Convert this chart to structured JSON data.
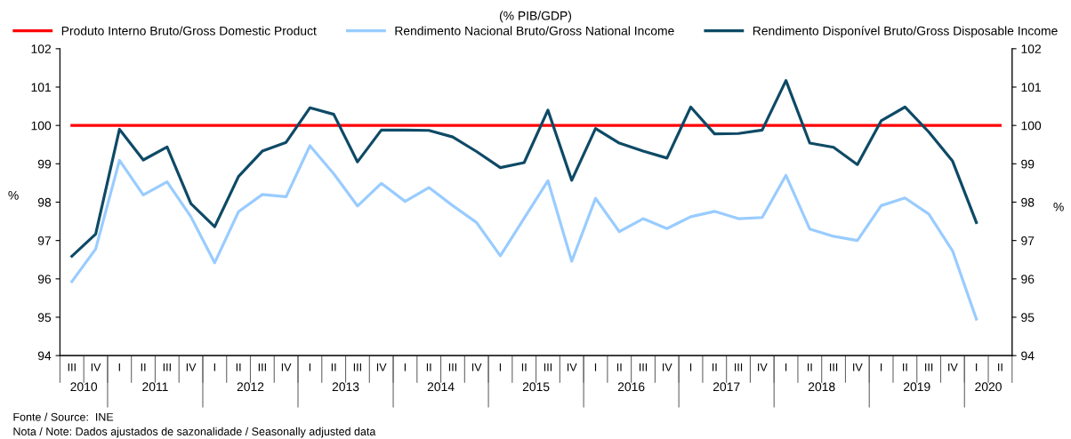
{
  "chart_data": {
    "type": "line",
    "title": "(% PIB/GDP)",
    "categories": [
      "III",
      "IV",
      "I",
      "II",
      "III",
      "IV",
      "I",
      "II",
      "III",
      "IV",
      "I",
      "II",
      "III",
      "IV",
      "I",
      "II",
      "III",
      "IV",
      "I",
      "II",
      "III",
      "IV",
      "I",
      "II",
      "III",
      "IV",
      "I",
      "II",
      "III",
      "IV",
      "I",
      "II",
      "III",
      "IV",
      "I",
      "II",
      "III",
      "IV",
      "I",
      "II"
    ],
    "series": [
      {
        "name": "Produto Interno Bruto/Gross Domestic Product",
        "color": "#ff0000",
        "values": [
          100,
          100,
          100,
          100,
          100,
          100,
          100,
          100,
          100,
          100,
          100,
          100,
          100,
          100,
          100,
          100,
          100,
          100,
          100,
          100,
          100,
          100,
          100,
          100,
          100,
          100,
          100,
          100,
          100,
          100,
          100,
          100,
          100,
          100,
          100,
          100,
          100,
          100,
          100,
          100
        ]
      },
      {
        "name": "Rendimento Nacional Bruto/Gross National Income",
        "color": "#99ccff",
        "values": [
          95.93,
          96.78,
          99.09,
          98.19,
          98.53,
          97.62,
          96.42,
          97.75,
          98.2,
          98.14,
          99.47,
          98.74,
          97.9,
          98.49,
          98.02,
          98.38,
          97.91,
          97.47,
          96.6,
          97.58,
          98.56,
          96.46,
          98.1,
          97.23,
          97.57,
          97.31,
          97.62,
          97.76,
          97.57,
          97.6,
          98.7,
          97.3,
          97.11,
          97.0,
          97.91,
          98.11,
          97.69,
          96.73,
          94.95,
          null
        ]
      },
      {
        "name": "Rendimento Disponível Bruto/Gross Disposable Income",
        "color": "#0e4a66",
        "values": [
          96.59,
          97.17,
          99.9,
          99.1,
          99.44,
          97.96,
          97.36,
          98.67,
          99.33,
          99.56,
          100.46,
          100.29,
          99.05,
          99.88,
          99.88,
          99.87,
          99.7,
          99.32,
          98.9,
          99.03,
          100.4,
          98.57,
          99.92,
          99.54,
          99.33,
          99.15,
          100.48,
          99.78,
          99.79,
          99.88,
          101.17,
          99.54,
          99.43,
          98.98,
          100.12,
          100.48,
          99.83,
          99.07,
          97.47,
          null
        ]
      }
    ],
    "ylim": [
      94,
      102
    ],
    "yticks": [
      94,
      95,
      96,
      97,
      98,
      99,
      100,
      101,
      102
    ],
    "y2lim": [
      94,
      102
    ],
    "y2ticks": [
      94,
      95,
      96,
      97,
      98,
      99,
      100,
      101,
      102
    ],
    "ylabel": "%",
    "y2label": "%",
    "legend": "top",
    "grid": false,
    "marker": "none",
    "line_style": "solid",
    "annotations": [
      "2010",
      "2011",
      "2012",
      "2013",
      "2014",
      "2015",
      "2016",
      "2017",
      "2018",
      "2019",
      "2020",
      "Fonte / Source:  INE",
      "Nota / Note: Dados ajustados de sazonalidade / Seasonally adjusted data"
    ]
  }
}
